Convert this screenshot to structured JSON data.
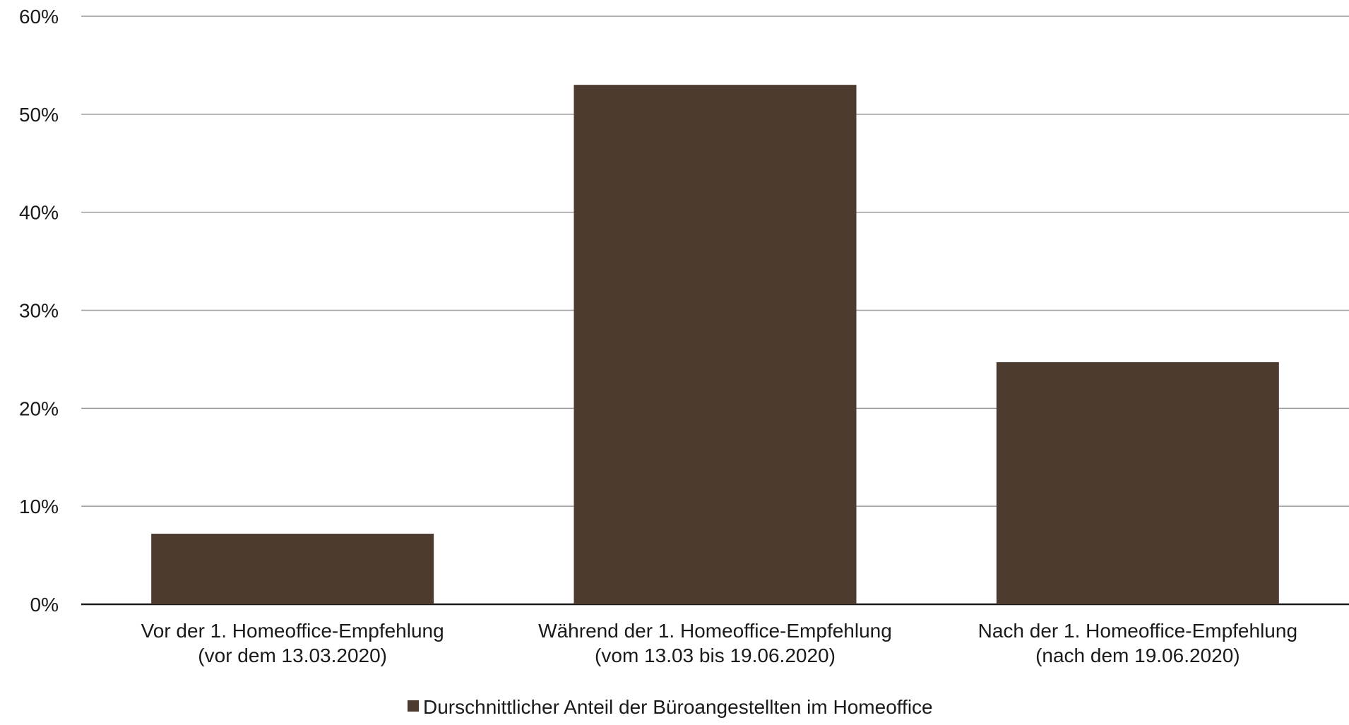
{
  "chart_data": {
    "type": "bar",
    "categories": [
      [
        "Vor der 1. Homeoffice-Empfehlung",
        "(vor dem 13.03.2020)"
      ],
      [
        "Während der 1. Homeoffice-Empfehlung",
        "(vom 13.03 bis 19.06.2020)"
      ],
      [
        "Nach der 1. Homeoffice-Empfehlung",
        "(nach dem 19.06.2020)"
      ]
    ],
    "series": [
      {
        "name": "Durschnittlicher Anteil der Büroangestellten im Homeoffice",
        "values": [
          7.2,
          53,
          24.7
        ],
        "color": "#4e3b30"
      }
    ],
    "ylim": [
      0,
      60
    ],
    "yticks": [
      0,
      10,
      20,
      30,
      40,
      50,
      60
    ],
    "ytick_labels": [
      "0%",
      "10%",
      "20%",
      "30%",
      "40%",
      "50%",
      "60%"
    ],
    "grid": true,
    "legend": "bottom-center"
  }
}
